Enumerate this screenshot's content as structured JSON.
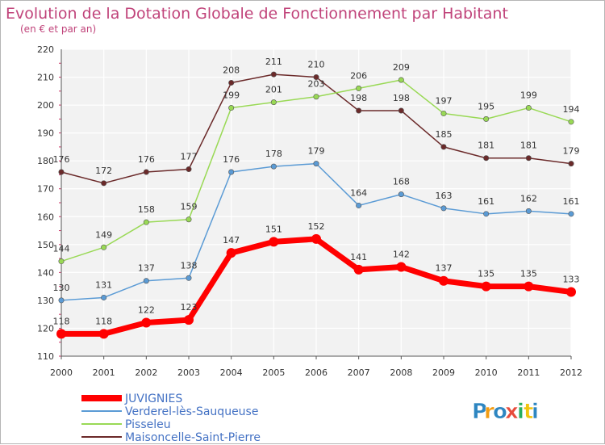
{
  "chart_data": {
    "type": "line",
    "title": "Evolution de la Dotation Globale de Fonctionnement par Habitant",
    "subtitle": "(en € et par an)",
    "x": [
      "2000",
      "2001",
      "2002",
      "2003",
      "2004",
      "2005",
      "2006",
      "2007",
      "2008",
      "2009",
      "2010",
      "2011",
      "2012"
    ],
    "ylim": [
      110,
      220
    ],
    "yticks": [
      110,
      120,
      130,
      140,
      150,
      160,
      170,
      180,
      190,
      200,
      210,
      220
    ],
    "grid": true,
    "legend_position": "bottom-left",
    "series": [
      {
        "name": "JUVIGNIES",
        "color": "#ff0000",
        "values": [
          118,
          118,
          122,
          123,
          147,
          151,
          152,
          141,
          142,
          137,
          135,
          135,
          133
        ]
      },
      {
        "name": "Verderel-lès-Sauqueuse",
        "color": "#5b9bd5",
        "values": [
          130,
          131,
          137,
          138,
          176,
          178,
          179,
          164,
          168,
          163,
          161,
          162,
          161
        ]
      },
      {
        "name": "Pisseleu",
        "color": "#99d955",
        "values": [
          144,
          149,
          158,
          159,
          199,
          201,
          203,
          206,
          209,
          197,
          195,
          199,
          194
        ]
      },
      {
        "name": "Maisoncelle-Saint-Pierre",
        "color": "#6b2a2a",
        "values": [
          176,
          172,
          176,
          177,
          208,
          211,
          210,
          198,
          198,
          185,
          181,
          181,
          179
        ]
      }
    ]
  },
  "brand": {
    "letters": [
      "P",
      "r",
      "o",
      "x",
      "i",
      "t",
      "i"
    ],
    "colors": [
      "#2e86c1",
      "#f39c12",
      "#2e86c1",
      "#e74c3c",
      "#27ae60",
      "#f1c40f",
      "#2e86c1"
    ]
  }
}
